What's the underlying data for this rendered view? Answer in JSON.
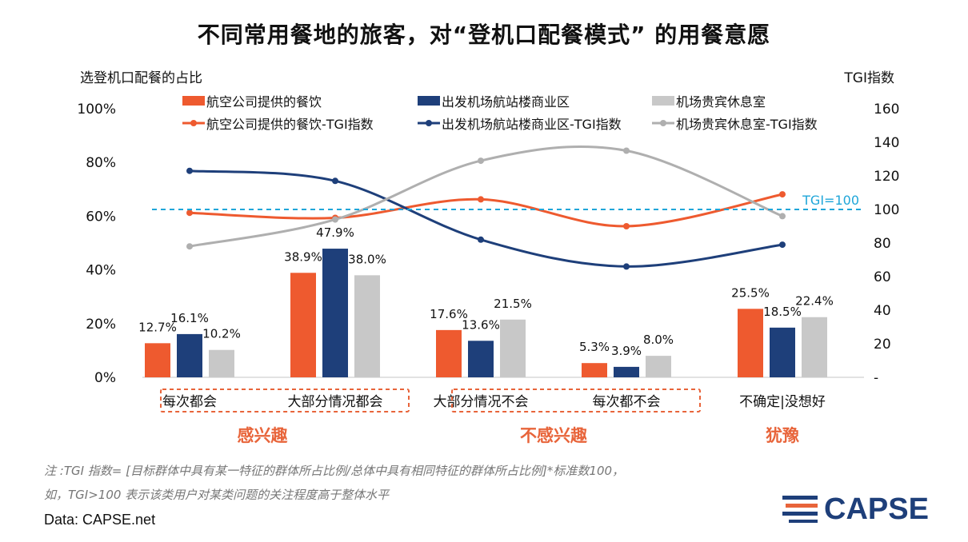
{
  "title": "不同常用餐地的旅客，对“登机口配餐模式” 的用餐意愿",
  "notes": {
    "line1": "注 :TGI 指数= [目标群体中具有某一特征的群体所占比例/总体中具有相同特征的群体所占比例]*标准数100，",
    "line2": "如，TGI>100 表示该类用户对某类问题的关注程度高于整体水平"
  },
  "source": "Data: CAPSE.net",
  "logo": {
    "text": "CAPSE"
  },
  "colors": {
    "orange": "#EE5A2F",
    "navy": "#1E3F7A",
    "gray": "#C8C8C8",
    "refline": "#1FA6D9",
    "box": "#E8643A"
  },
  "chart_data": {
    "type": "bar",
    "ylabel_left": "选登机口配餐的占比",
    "ylabel_right": "TGI指数",
    "ylim_left": [
      0,
      100
    ],
    "ylim_right": [
      0,
      160
    ],
    "left_ticks": [
      "0%",
      "20%",
      "40%",
      "60%",
      "80%",
      "100%"
    ],
    "right_ticks": [
      "-",
      "20",
      "40",
      "60",
      "80",
      "100",
      "120",
      "140",
      "160"
    ],
    "categories": [
      "每次都会",
      "大部分情况都会",
      "大部分情况不会",
      "每次都不会",
      "不确定|没想好"
    ],
    "groups": [
      {
        "label": "感兴趣",
        "span": [
          0,
          1
        ]
      },
      {
        "label": "不感兴趣",
        "span": [
          2,
          3
        ]
      },
      {
        "label": "犹豫",
        "span": [
          4,
          4
        ]
      }
    ],
    "series": [
      {
        "name": "航空公司提供的餐饮",
        "kind": "bar",
        "color": "#EE5A2F",
        "values": [
          12.7,
          38.9,
          17.6,
          5.3,
          25.5
        ],
        "labels": [
          "12.7%",
          "38.9%",
          "17.6%",
          "5.3%",
          "25.5%"
        ]
      },
      {
        "name": "出发机场航站楼商业区",
        "kind": "bar",
        "color": "#1E3F7A",
        "values": [
          16.1,
          47.9,
          13.6,
          3.9,
          18.5
        ],
        "labels": [
          "16.1%",
          "47.9%",
          "13.6%",
          "3.9%",
          "18.5%"
        ]
      },
      {
        "name": "机场贵宾休息室",
        "kind": "bar",
        "color": "#C8C8C8",
        "values": [
          10.2,
          38.0,
          21.5,
          8.0,
          22.4
        ],
        "labels": [
          "10.2%",
          "38.0%",
          "21.5%",
          "8.0%",
          "22.4%"
        ]
      },
      {
        "name": "航空公司提供的餐饮-TGI指数",
        "kind": "line",
        "axis": "right",
        "color": "#EE5A2F",
        "values": [
          98,
          95,
          106,
          90,
          109
        ]
      },
      {
        "name": "出发机场航站楼商业区-TGI指数",
        "kind": "line",
        "axis": "right",
        "color": "#1E3F7A",
        "values": [
          123,
          117,
          82,
          66,
          79
        ]
      },
      {
        "name": "机场贵宾休息室-TGI指数",
        "kind": "line",
        "axis": "right",
        "color": "#AFAFAF",
        "values": [
          78,
          94,
          129,
          135,
          96
        ]
      }
    ],
    "reference_line": {
      "axis": "right",
      "value": 100,
      "label": "TGI=100"
    }
  }
}
